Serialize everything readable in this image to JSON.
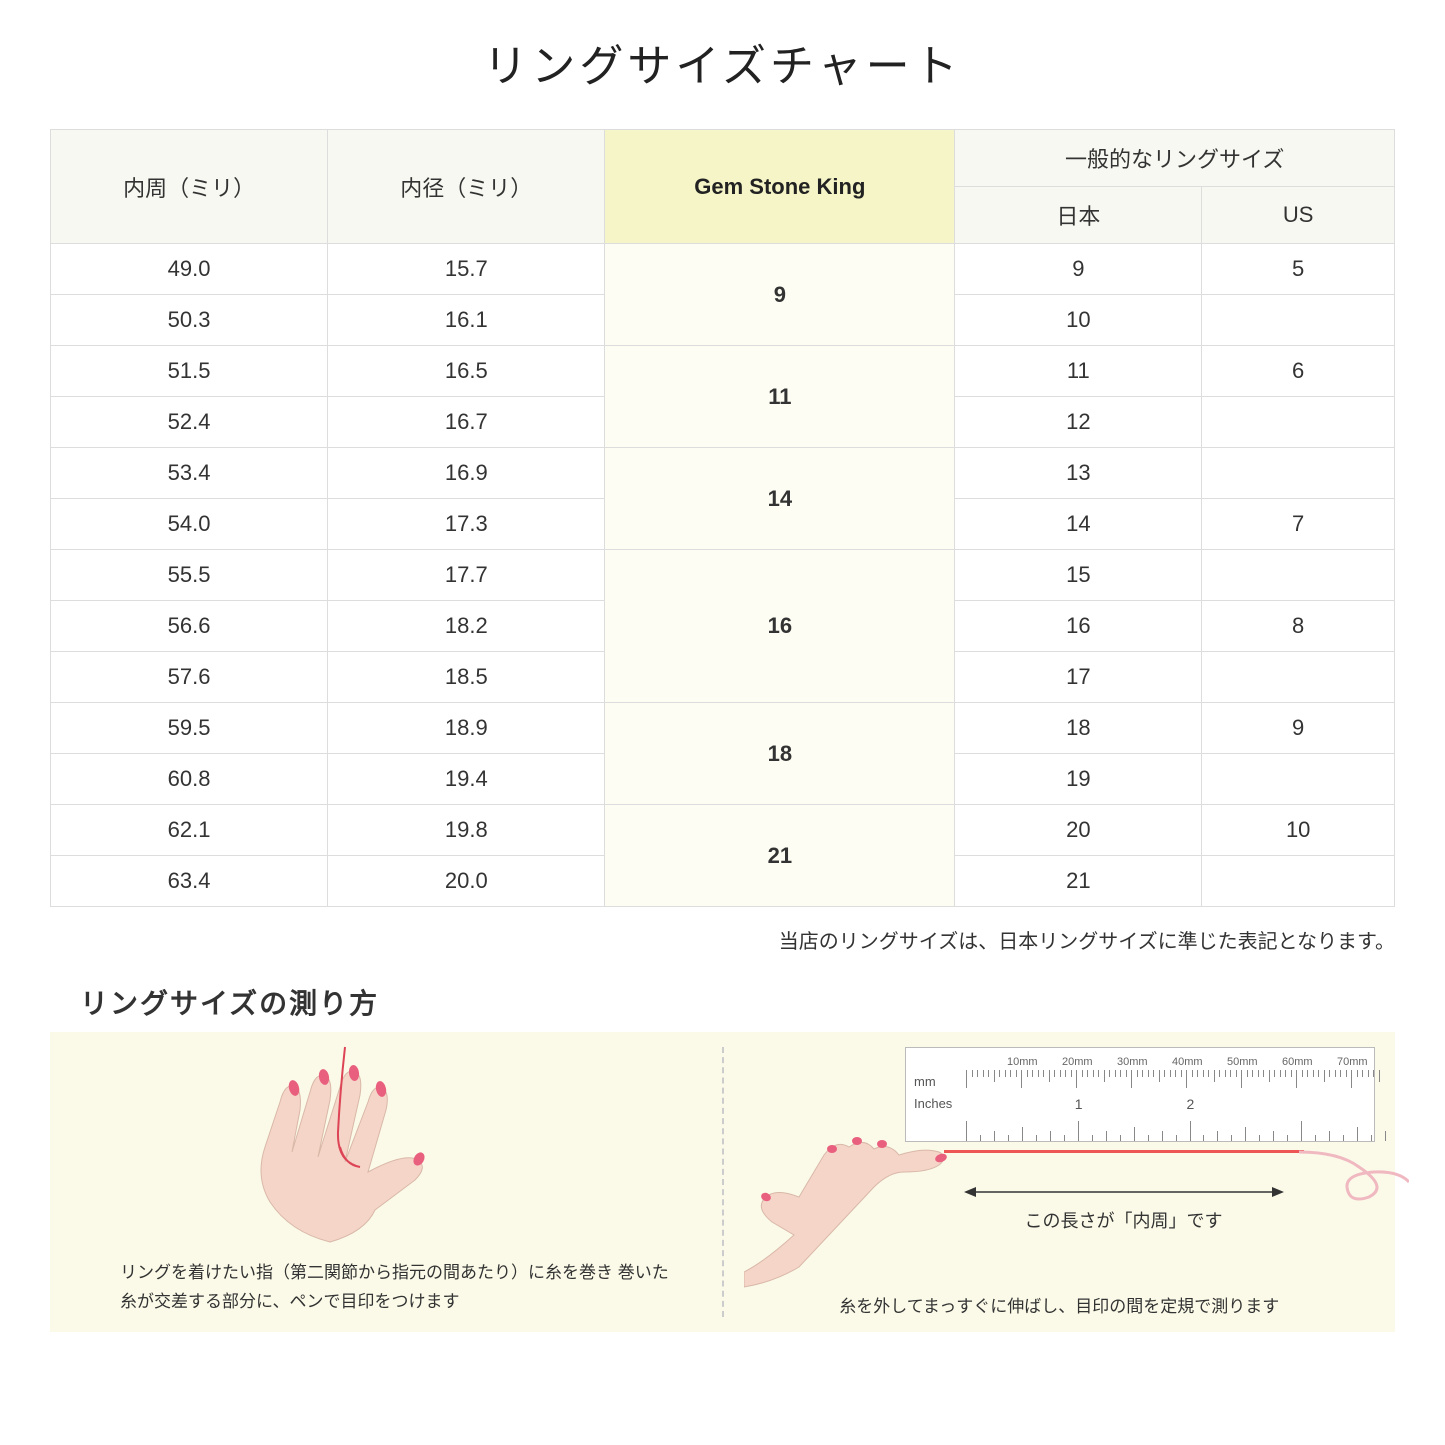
{
  "title": "リングサイズチャート",
  "table": {
    "headers": {
      "circumference": "内周（ミリ）",
      "diameter": "内径（ミリ）",
      "gem": "Gem Stone King",
      "general": "一般的なリングサイズ",
      "japan": "日本",
      "us": "US"
    },
    "groups": [
      {
        "gem": "9",
        "rows": [
          {
            "c": "49.0",
            "d": "15.7",
            "jp": "9",
            "us": "5"
          },
          {
            "c": "50.3",
            "d": "16.1",
            "jp": "10",
            "us": ""
          }
        ]
      },
      {
        "gem": "11",
        "rows": [
          {
            "c": "51.5",
            "d": "16.5",
            "jp": "11",
            "us": "6"
          },
          {
            "c": "52.4",
            "d": "16.7",
            "jp": "12",
            "us": ""
          }
        ]
      },
      {
        "gem": "14",
        "rows": [
          {
            "c": "53.4",
            "d": "16.9",
            "jp": "13",
            "us": ""
          },
          {
            "c": "54.0",
            "d": "17.3",
            "jp": "14",
            "us": "7"
          }
        ]
      },
      {
        "gem": "16",
        "rows": [
          {
            "c": "55.5",
            "d": "17.7",
            "jp": "15",
            "us": ""
          },
          {
            "c": "56.6",
            "d": "18.2",
            "jp": "16",
            "us": "8"
          },
          {
            "c": "57.6",
            "d": "18.5",
            "jp": "17",
            "us": ""
          }
        ]
      },
      {
        "gem": "18",
        "rows": [
          {
            "c": "59.5",
            "d": "18.9",
            "jp": "18",
            "us": "9"
          },
          {
            "c": "60.8",
            "d": "19.4",
            "jp": "19",
            "us": ""
          }
        ]
      },
      {
        "gem": "21",
        "rows": [
          {
            "c": "62.1",
            "d": "19.8",
            "jp": "20",
            "us": "10"
          },
          {
            "c": "63.4",
            "d": "20.0",
            "jp": "21",
            "us": ""
          }
        ]
      }
    ]
  },
  "note": "当店のリングサイズは、日本リングサイズに準じた表記となります。",
  "measure": {
    "title": "リングサイズの測り方",
    "left_text": "リングを着けたい指（第二関節から指元の間あたり）に糸を巻き\n巻いた糸が交差する部分に、ペンで目印をつけます",
    "right_text": "糸を外してまっすぐに伸ばし、目印の間を定規で測ります",
    "arrow_label": "この長さが「内周」です",
    "ruler": {
      "mm_label": "mm",
      "in_label": "Inches",
      "mm_marks": [
        "10mm",
        "20mm",
        "30mm",
        "40mm",
        "50mm",
        "60mm",
        "70mm"
      ],
      "in_marks": [
        "1",
        "2"
      ]
    }
  },
  "colors": {
    "header_bg": "#f8f8f2",
    "highlight_bg": "#f5f5c8",
    "gem_cell_bg": "#fdfdf3",
    "panel_bg": "#fbfae8",
    "skin": "#f5d5c8",
    "nail": "#e9607f",
    "thread": "#dd4455",
    "border": "#dddddd"
  }
}
